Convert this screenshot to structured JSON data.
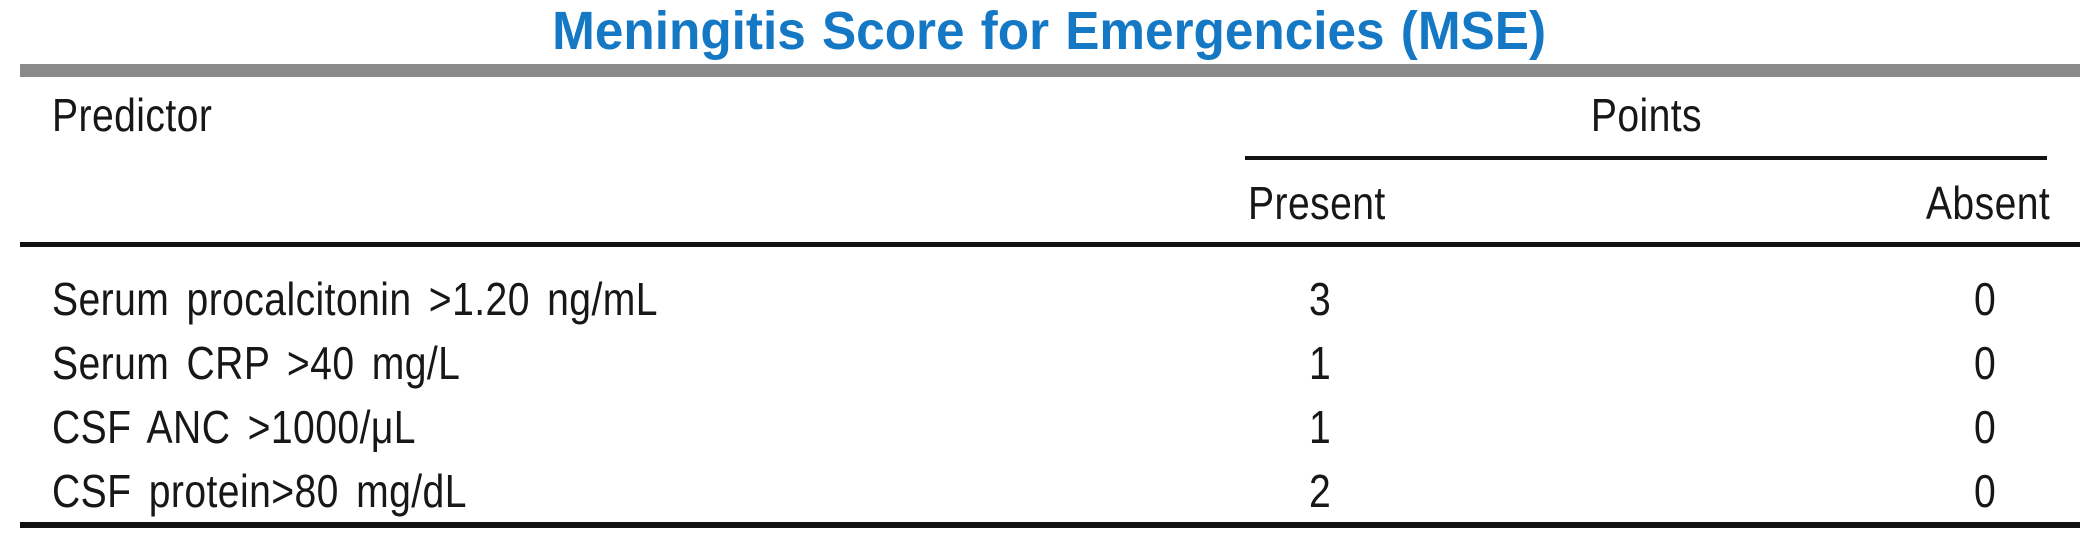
{
  "title": "Meningitis Score for Emergencies (MSE)",
  "colors": {
    "title_blue": "#1478C4",
    "top_rule_gray": "#8a8a8a",
    "line_black": "#121212",
    "text_black": "#171717",
    "background": "#ffffff"
  },
  "table": {
    "headers": {
      "predictor": "Predictor",
      "points": "Points",
      "present": "Present",
      "absent": "Absent"
    },
    "rows": [
      {
        "predictor": "Serum procalcitonin >1.20 ng/mL",
        "present": "3",
        "absent": "0"
      },
      {
        "predictor": "Serum CRP >40 mg/L",
        "present": "1",
        "absent": "0"
      },
      {
        "predictor": "CSF ANC >1000/μL",
        "present": "1",
        "absent": "0"
      },
      {
        "predictor": "CSF protein>80 mg/dL",
        "present": "2",
        "absent": "0"
      }
    ]
  }
}
